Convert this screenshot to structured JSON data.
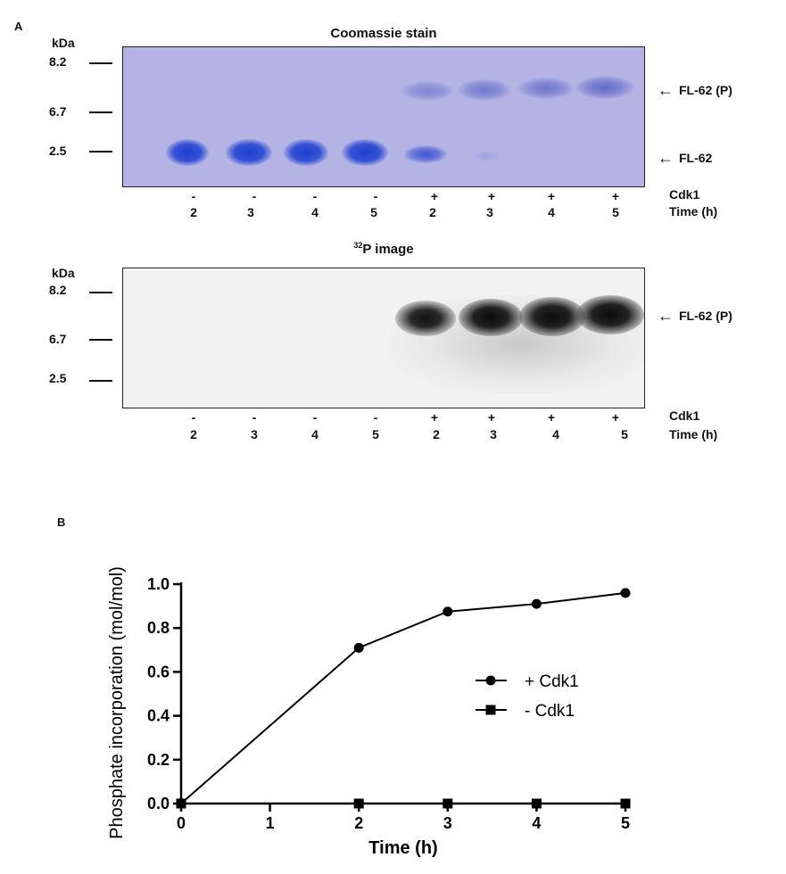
{
  "panel_a": {
    "letter": "A",
    "gel1": {
      "title": "Coomassie stain",
      "kda_label": "kDa",
      "markers": [
        "8.2",
        "6.7",
        "2.5"
      ],
      "arrow_labels": [
        "FL-62 (P)",
        "FL-62"
      ]
    },
    "gel2": {
      "title_sup": "32",
      "title_main": "P image",
      "kda_label": "kDa",
      "markers": [
        "8.2",
        "6.7",
        "2.5"
      ],
      "arrow_labels": [
        "FL-62 (P)"
      ]
    },
    "lanes": {
      "cdk1": [
        "-",
        "-",
        "-",
        "-",
        "+",
        "+",
        "+",
        "+"
      ],
      "time": [
        "2",
        "3",
        "4",
        "5",
        "2",
        "3",
        "4",
        "5"
      ],
      "cdk1_label": "Cdk1",
      "time_label": "Time (h)"
    },
    "arrow_glyph": "←"
  },
  "panel_b": {
    "letter": "B"
  },
  "chart_data": {
    "type": "line",
    "xlabel": "Time (h)",
    "ylabel": "Phosphate incorporation (mol/mol)",
    "xlim": [
      0,
      5
    ],
    "ylim": [
      0,
      1.0
    ],
    "xticks": [
      "0",
      "1",
      "2",
      "3",
      "4",
      "5"
    ],
    "yticks": [
      "0.0",
      "0.2",
      "0.4",
      "0.6",
      "0.8",
      "1.0"
    ],
    "legend_position": "center-right",
    "series": [
      {
        "name": "+ Cdk1",
        "marker": "circle",
        "x": [
          0,
          2,
          3,
          4,
          5
        ],
        "y": [
          0.0,
          0.71,
          0.875,
          0.91,
          0.96
        ]
      },
      {
        "name": "- Cdk1",
        "marker": "square",
        "x": [
          0,
          2,
          3,
          4,
          5
        ],
        "y": [
          0.0,
          0.0,
          0.0,
          0.0,
          0.0
        ]
      }
    ]
  }
}
